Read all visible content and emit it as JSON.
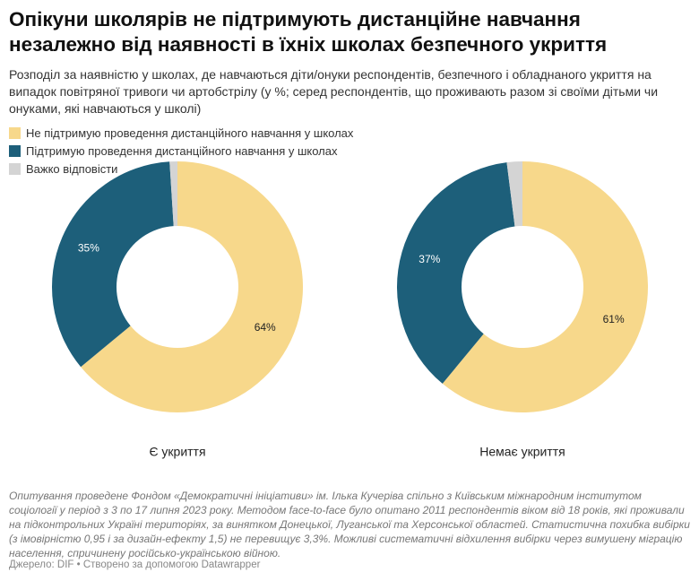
{
  "title": "Опікуни школярів не підтримують дистанційне навчання незалежно від наявності в їхніх школах безпечного укриття",
  "subtitle": "Розподіл за наявністю у школах, де навчаються діти/онуки респондентів, безпечного і обладнаного укриття на випадок повітряної тривоги чи артобстрілу (у %; серед респондентів, що проживають разом зі своїми дітьми чи онуками, які навчаються у школі)",
  "note": "Опитування проведене Фондом «Демократичні ініціативи» ім. Ілька Кучеріва спільно з Київським міжнародним інститутом соціології у період з 3 по 17 липня 2023 року. Методом face-to-face було опитано 2011 респондентів віком від 18 років, які проживали на підконтрольних Україні територіях, за винятком Донецької, Луганської та Херсонської областей. Статистична похибка вибірки (з імовірністю 0,95 і за дизайн-ефекту 1,5) не перевищує 3,3%. Можливі систематичні відхилення вибірки через вимушену міграцію населення, спричинену російсько-українською війною.",
  "source": "Джерело: DIF • Створено за допомогою Datawrapper",
  "chart_data": [
    {
      "type": "donut",
      "title": "Є укриття",
      "categories": [
        "Не підтримую проведення дистанційного навчання у школах",
        "Підтримую проведення дистанційного навчання у школах",
        "Важко відповісти"
      ],
      "values": [
        64,
        35,
        1
      ],
      "value_labels": [
        "64%",
        "35%",
        null
      ],
      "colors": [
        "#f7d88b",
        "#1d5f7a",
        "#d4d4d4"
      ]
    },
    {
      "type": "donut",
      "title": "Немає укриття",
      "categories": [
        "Не підтримую проведення дистанційного навчання у школах",
        "Підтримую проведення дистанційного навчання у школах",
        "Важко відповісти"
      ],
      "values": [
        61,
        37,
        2
      ],
      "value_labels": [
        "61%",
        "37%",
        null
      ],
      "colors": [
        "#f7d88b",
        "#1d5f7a",
        "#d4d4d4"
      ]
    }
  ]
}
